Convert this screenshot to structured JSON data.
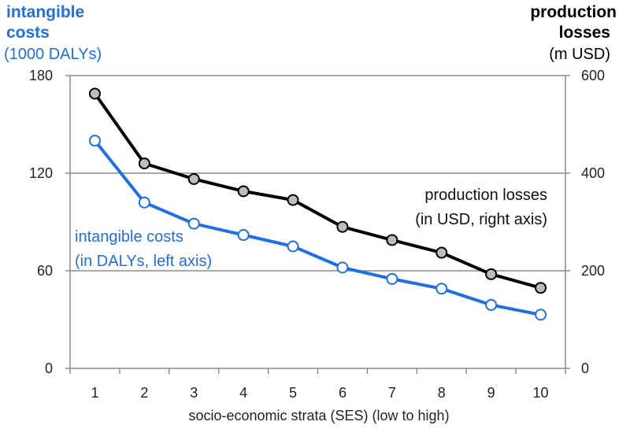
{
  "chart_data": {
    "type": "line",
    "title": "",
    "xlabel": "socio-economic strata (SES) (low to high)",
    "left_axis": {
      "title_lines": [
        "intangible",
        "costs"
      ],
      "unit": "(1000 DALYs)",
      "ylim": [
        0,
        180
      ],
      "ticks": [
        0,
        60,
        120,
        180
      ]
    },
    "right_axis": {
      "title_lines": [
        "production",
        "losses"
      ],
      "unit": "(m USD)",
      "ylim": [
        0,
        600
      ],
      "ticks": [
        0,
        200,
        400,
        600
      ]
    },
    "categories": [
      "1",
      "2",
      "3",
      "4",
      "5",
      "6",
      "7",
      "8",
      "9",
      "10"
    ],
    "grid": true,
    "series": [
      {
        "name": "production losses",
        "axis": "right",
        "color": "#000000",
        "marker_fill": "#bdbdbd",
        "annotation_lines": [
          "production losses",
          "(in USD, right axis)"
        ],
        "values": [
          563,
          420,
          388,
          363,
          345,
          290,
          263,
          237,
          193,
          165
        ]
      },
      {
        "name": "intangible costs",
        "axis": "left",
        "color": "#1f6fe5",
        "marker_fill": "#ffffff",
        "annotation_lines": [
          "intangible costs",
          "(in DALYs, left axis)"
        ],
        "values": [
          140,
          102,
          89,
          82,
          75,
          62,
          55,
          49,
          39,
          33
        ]
      }
    ]
  }
}
